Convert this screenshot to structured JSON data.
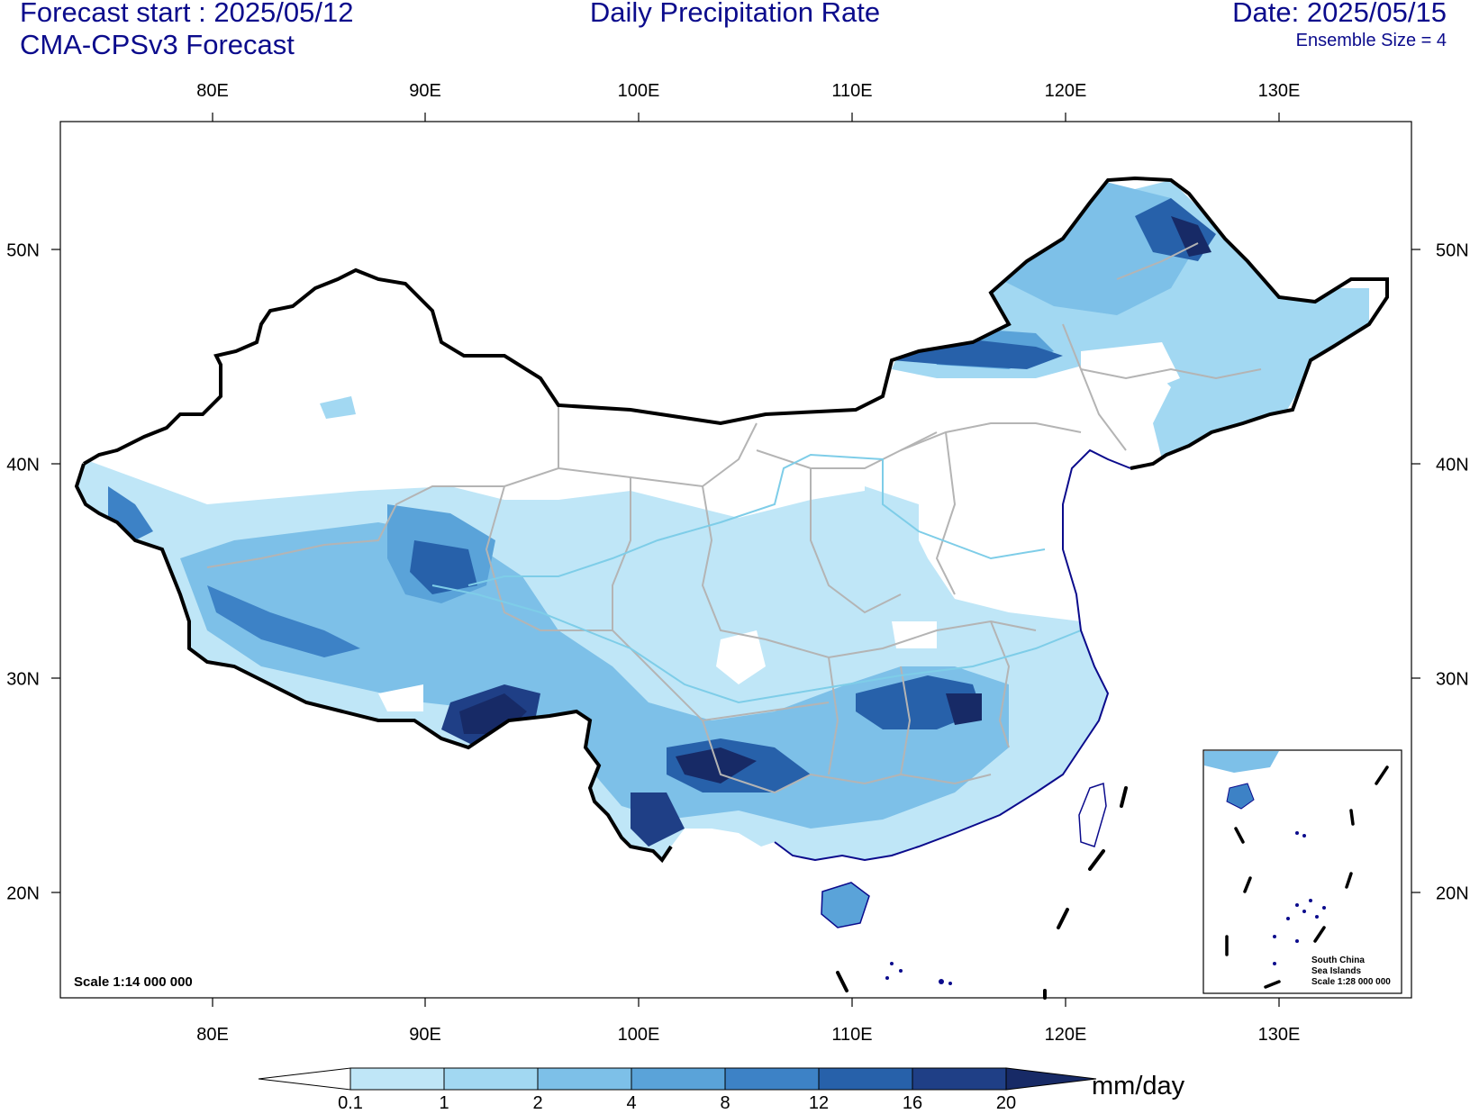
{
  "header": {
    "forecast_start": "Forecast start : 2025/05/12",
    "model": "CMA-CPSv3 Forecast",
    "title": "Daily Precipitation Rate",
    "date": "Date: 2025/05/15",
    "ensemble": "Ensemble Size = 4"
  },
  "axes": {
    "lon_labels": [
      "80E",
      "90E",
      "100E",
      "110E",
      "120E",
      "130E"
    ],
    "lat_labels": [
      "50N",
      "40N",
      "30N",
      "20N"
    ],
    "lon_range": [
      73,
      136
    ],
    "lat_range": [
      15,
      56
    ]
  },
  "map": {
    "scale_note": "Scale 1:14 000 000",
    "inset_label": [
      "South China",
      "Sea Islands",
      "Scale 1:28 000 000"
    ],
    "boundary_color": "#000000",
    "coast_color": "#0b0b8c",
    "province_color": "#b4b4b4",
    "river_color": "#7ecde8"
  },
  "colorbar": {
    "levels": [
      "0.1",
      "1",
      "2",
      "4",
      "8",
      "12",
      "16",
      "20"
    ],
    "colors": [
      "#ffffff",
      "#bfe6f7",
      "#a2d8f2",
      "#7dc0e8",
      "#5aa3d9",
      "#3d82c6",
      "#2761aa",
      "#1f3f86",
      "#172a66"
    ],
    "unit": "mm/day"
  }
}
